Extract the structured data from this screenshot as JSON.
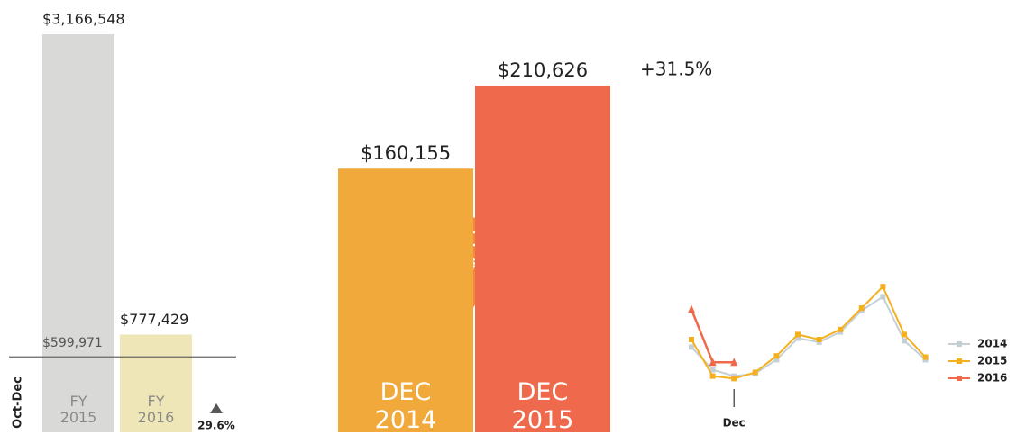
{
  "chart_data": [
    {
      "type": "bar",
      "categories": [
        "FY 2015",
        "FY 2016"
      ],
      "values": [
        3166548,
        777429
      ],
      "value_labels": [
        "$3,166,548",
        "$777,429"
      ],
      "colors": [
        "#d9dad8",
        "#efe6b8"
      ],
      "ylim": [
        0,
        3200000
      ],
      "reference": {
        "value": 599971,
        "label": "$599,971",
        "name": "Oct-Dec"
      },
      "change": {
        "value": 29.6,
        "label": "29.6%"
      }
    },
    {
      "type": "bar",
      "categories": [
        "DEC 2014",
        "DEC 2015"
      ],
      "values": [
        160155,
        210626
      ],
      "value_labels": [
        "$160,155",
        "$210,626"
      ],
      "colors": [
        "#f2a93b",
        "#ef6a4c"
      ],
      "ylim": [
        0,
        250000
      ],
      "change": {
        "value": 31.5,
        "label": "+31.5%"
      }
    },
    {
      "type": "line",
      "categories": [
        null,
        null,
        "Dec",
        null,
        null,
        null,
        null,
        null,
        null,
        null,
        null,
        null
      ],
      "ylim": [
        0,
        100
      ],
      "legend": "right",
      "series": [
        {
          "name": "2014",
          "color": "#c5d0d6",
          "values": [
            39,
            21,
            16,
            18,
            29,
            46,
            43,
            51,
            68,
            79,
            44,
            29
          ]
        },
        {
          "name": "2015",
          "color": "#f5b01e",
          "values": [
            45,
            16,
            14,
            19,
            32,
            49,
            45,
            53,
            70,
            87,
            49,
            31
          ]
        },
        {
          "name": "2016",
          "color": "#ee6a4a",
          "values": [
            69,
            27,
            27,
            null,
            null,
            null,
            null,
            null,
            null,
            null,
            null,
            null
          ]
        }
      ]
    }
  ]
}
